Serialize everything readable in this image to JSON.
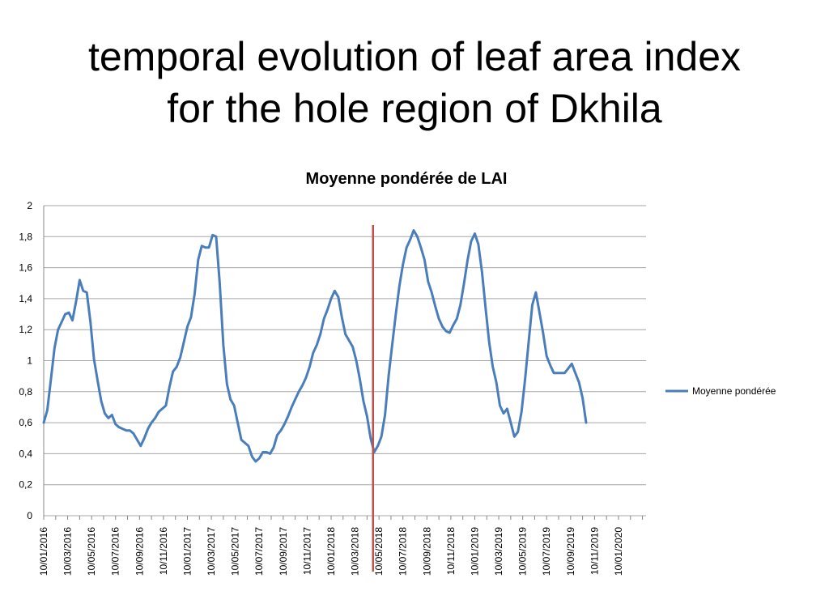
{
  "slide": {
    "title_line1": "temporal evolution of leaf area index",
    "title_line2": "for the hole region of Dkhila"
  },
  "colors": {
    "series": "#4a7ebb",
    "marker_line": "#c0504d",
    "grid": "#a6a6a6",
    "axis": "#888888"
  },
  "chart_data": {
    "type": "line",
    "title": "Moyenne pondérée de LAI",
    "xlabel": "",
    "ylabel": "",
    "ylim": [
      0,
      2
    ],
    "yticks": [
      "0",
      "0,2",
      "0,4",
      "0,6",
      "0,8",
      "1",
      "1,2",
      "1,4",
      "1,6",
      "1,8",
      "2"
    ],
    "xticks": [
      "10/01/2016",
      "10/03/2016",
      "10/05/2016",
      "10/07/2016",
      "10/09/2016",
      "10/11/2016",
      "10/01/2017",
      "10/03/2017",
      "10/05/2017",
      "10/07/2017",
      "10/09/2017",
      "10/11/2017",
      "10/01/2018",
      "10/03/2018",
      "10/05/2018",
      "10/07/2018",
      "10/09/2018",
      "10/11/2018",
      "10/01/2019",
      "10/03/2019",
      "10/05/2019",
      "10/07/2019",
      "10/09/2019",
      "10/11/2019",
      "10/01/2020"
    ],
    "x_unit": "months since 10/01/2016",
    "xlim": [
      0,
      50.3
    ],
    "legend": {
      "label": "Moyenne pondérée",
      "position": "right"
    },
    "vertical_marker": {
      "x": 27.5,
      "color": "#c0504d"
    },
    "series": [
      {
        "name": "Moyenne pondérée",
        "points": [
          [
            0.0,
            0.6
          ],
          [
            0.3,
            0.68
          ],
          [
            0.6,
            0.88
          ],
          [
            0.9,
            1.08
          ],
          [
            1.2,
            1.2
          ],
          [
            1.5,
            1.25
          ],
          [
            1.8,
            1.3
          ],
          [
            2.1,
            1.31
          ],
          [
            2.4,
            1.26
          ],
          [
            2.7,
            1.38
          ],
          [
            3.0,
            1.52
          ],
          [
            3.3,
            1.45
          ],
          [
            3.6,
            1.44
          ],
          [
            3.9,
            1.25
          ],
          [
            4.2,
            1.01
          ],
          [
            4.5,
            0.87
          ],
          [
            4.8,
            0.74
          ],
          [
            5.1,
            0.66
          ],
          [
            5.4,
            0.63
          ],
          [
            5.7,
            0.65
          ],
          [
            6.0,
            0.59
          ],
          [
            6.3,
            0.57
          ],
          [
            6.6,
            0.56
          ],
          [
            6.9,
            0.55
          ],
          [
            7.2,
            0.55
          ],
          [
            7.5,
            0.53
          ],
          [
            7.8,
            0.49
          ],
          [
            8.1,
            0.45
          ],
          [
            8.4,
            0.5
          ],
          [
            8.7,
            0.56
          ],
          [
            9.0,
            0.6
          ],
          [
            9.3,
            0.63
          ],
          [
            9.6,
            0.67
          ],
          [
            9.9,
            0.69
          ],
          [
            10.2,
            0.71
          ],
          [
            10.5,
            0.83
          ],
          [
            10.8,
            0.93
          ],
          [
            11.1,
            0.96
          ],
          [
            11.4,
            1.02
          ],
          [
            11.7,
            1.12
          ],
          [
            12.0,
            1.22
          ],
          [
            12.3,
            1.28
          ],
          [
            12.6,
            1.43
          ],
          [
            12.9,
            1.65
          ],
          [
            13.2,
            1.74
          ],
          [
            13.5,
            1.73
          ],
          [
            13.8,
            1.73
          ],
          [
            14.1,
            1.81
          ],
          [
            14.4,
            1.8
          ],
          [
            14.7,
            1.5
          ],
          [
            15.0,
            1.1
          ],
          [
            15.3,
            0.85
          ],
          [
            15.6,
            0.75
          ],
          [
            15.9,
            0.71
          ],
          [
            16.2,
            0.6
          ],
          [
            16.5,
            0.49
          ],
          [
            16.8,
            0.47
          ],
          [
            17.1,
            0.45
          ],
          [
            17.4,
            0.38
          ],
          [
            17.7,
            0.35
          ],
          [
            18.0,
            0.37
          ],
          [
            18.3,
            0.41
          ],
          [
            18.6,
            0.41
          ],
          [
            18.9,
            0.4
          ],
          [
            19.2,
            0.44
          ],
          [
            19.5,
            0.52
          ],
          [
            19.8,
            0.55
          ],
          [
            20.1,
            0.59
          ],
          [
            20.4,
            0.64
          ],
          [
            20.7,
            0.7
          ],
          [
            21.0,
            0.75
          ],
          [
            21.3,
            0.8
          ],
          [
            21.6,
            0.84
          ],
          [
            21.9,
            0.89
          ],
          [
            22.2,
            0.96
          ],
          [
            22.5,
            1.05
          ],
          [
            22.8,
            1.1
          ],
          [
            23.1,
            1.17
          ],
          [
            23.4,
            1.27
          ],
          [
            23.7,
            1.33
          ],
          [
            24.0,
            1.4
          ],
          [
            24.3,
            1.45
          ],
          [
            24.6,
            1.41
          ],
          [
            24.9,
            1.28
          ],
          [
            25.2,
            1.17
          ],
          [
            25.5,
            1.13
          ],
          [
            25.8,
            1.09
          ],
          [
            26.1,
            1.0
          ],
          [
            26.4,
            0.88
          ],
          [
            26.7,
            0.74
          ],
          [
            27.0,
            0.64
          ],
          [
            27.3,
            0.5
          ],
          [
            27.6,
            0.41
          ],
          [
            27.9,
            0.45
          ],
          [
            28.2,
            0.51
          ],
          [
            28.5,
            0.65
          ],
          [
            28.8,
            0.9
          ],
          [
            29.1,
            1.1
          ],
          [
            29.4,
            1.3
          ],
          [
            29.7,
            1.48
          ],
          [
            30.0,
            1.62
          ],
          [
            30.3,
            1.73
          ],
          [
            30.6,
            1.78
          ],
          [
            30.9,
            1.84
          ],
          [
            31.2,
            1.8
          ],
          [
            31.5,
            1.73
          ],
          [
            31.8,
            1.65
          ],
          [
            32.1,
            1.51
          ],
          [
            32.4,
            1.44
          ],
          [
            32.7,
            1.35
          ],
          [
            33.0,
            1.27
          ],
          [
            33.3,
            1.22
          ],
          [
            33.6,
            1.19
          ],
          [
            33.9,
            1.18
          ],
          [
            34.2,
            1.23
          ],
          [
            34.5,
            1.27
          ],
          [
            34.8,
            1.36
          ],
          [
            35.1,
            1.5
          ],
          [
            35.4,
            1.65
          ],
          [
            35.7,
            1.77
          ],
          [
            36.0,
            1.82
          ],
          [
            36.3,
            1.75
          ],
          [
            36.6,
            1.57
          ],
          [
            36.9,
            1.34
          ],
          [
            37.2,
            1.12
          ],
          [
            37.5,
            0.96
          ],
          [
            37.8,
            0.86
          ],
          [
            38.1,
            0.71
          ],
          [
            38.4,
            0.66
          ],
          [
            38.7,
            0.69
          ],
          [
            39.0,
            0.6
          ],
          [
            39.3,
            0.51
          ],
          [
            39.6,
            0.54
          ],
          [
            39.9,
            0.67
          ],
          [
            40.2,
            0.88
          ],
          [
            40.5,
            1.12
          ],
          [
            40.8,
            1.36
          ],
          [
            41.1,
            1.44
          ],
          [
            41.4,
            1.31
          ],
          [
            41.7,
            1.18
          ],
          [
            42.0,
            1.03
          ],
          [
            42.3,
            0.97
          ],
          [
            42.6,
            0.92
          ],
          [
            42.9,
            0.92
          ],
          [
            43.2,
            0.92
          ],
          [
            43.5,
            0.92
          ],
          [
            43.8,
            0.95
          ],
          [
            44.1,
            0.98
          ],
          [
            44.4,
            0.92
          ],
          [
            44.7,
            0.86
          ],
          [
            45.0,
            0.76
          ],
          [
            45.3,
            0.6
          ]
        ]
      }
    ]
  }
}
